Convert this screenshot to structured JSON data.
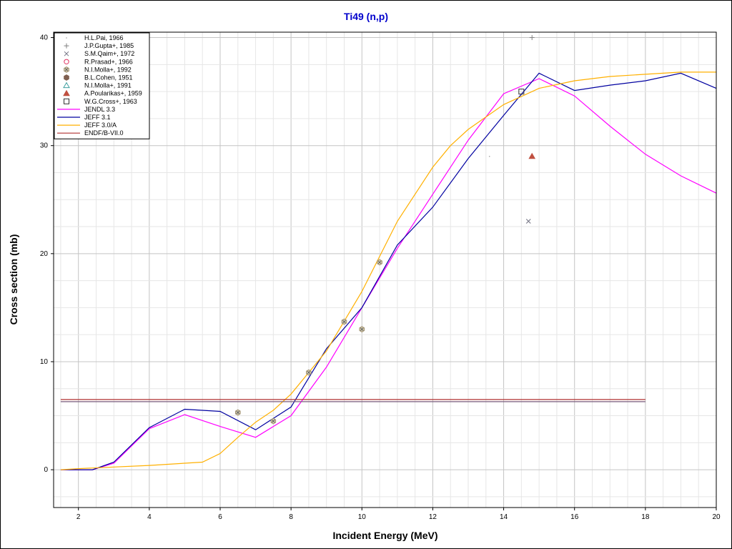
{
  "chart_data": {
    "type": "line",
    "title": "Ti49 (n,p)",
    "xlabel": "Incident Energy (MeV)",
    "ylabel": "Cross section (mb)",
    "xlim": [
      1.3,
      20
    ],
    "ylim": [
      -3.5,
      40.5
    ],
    "xticks": [
      2,
      4,
      6,
      8,
      10,
      12,
      14,
      16,
      18,
      20
    ],
    "yticks": [
      0,
      10,
      20,
      30,
      40
    ],
    "xminor_step": 0.5,
    "yminor_step": 2.5,
    "grid": true,
    "legend_position": "top-left",
    "colors": {
      "title": "#0000cc",
      "grid_major": "#c4c4c4",
      "grid_minor": "#e6e6e6"
    },
    "experimental": [
      {
        "name": "H.L.Pai, 1966",
        "marker": "dot",
        "color": "#a0a0a0",
        "points": [
          [
            13.6,
            29
          ]
        ]
      },
      {
        "name": "J.P.Gupta+, 1985",
        "marker": "plus",
        "color": "#808080",
        "points": [
          [
            14.8,
            40
          ]
        ]
      },
      {
        "name": "S.M.Qaim+, 1972",
        "marker": "x",
        "color": "#707080",
        "points": [
          [
            14.7,
            23
          ]
        ]
      },
      {
        "name": "R.Prasad+, 1966",
        "marker": "circle-open",
        "color": "#e03060",
        "points": []
      },
      {
        "name": "N.I.Molla+, 1992",
        "marker": "hex-x",
        "color": "#a09070",
        "points": [
          [
            6.5,
            5.3
          ],
          [
            7.5,
            4.5
          ],
          [
            8.5,
            9.0
          ],
          [
            9.5,
            13.7
          ],
          [
            10.0,
            13.0
          ],
          [
            10.5,
            19.2
          ]
        ]
      },
      {
        "name": "B.L.Cohen, 1951",
        "marker": "hex-filled",
        "color": "#806050",
        "points": []
      },
      {
        "name": "N.I.Molla+, 1991",
        "marker": "triangle-open",
        "color": "#40a0a0",
        "points": []
      },
      {
        "name": "A.Poularikas+, 1959",
        "marker": "triangle-filled",
        "color": "#c05040",
        "points": [
          [
            14.8,
            29
          ]
        ]
      },
      {
        "name": "W.G.Cross+, 1963",
        "marker": "square-open",
        "color": "#303030",
        "points": [
          [
            14.5,
            35
          ]
        ]
      }
    ],
    "series": [
      {
        "name": "JENDL 3.3",
        "color": "#ff00ff",
        "x": [
          1.5,
          2.4,
          3,
          4,
          5,
          6,
          7,
          8,
          9,
          10,
          11,
          12,
          13,
          14,
          15,
          16,
          17,
          18,
          19,
          20
        ],
        "y": [
          0,
          0,
          0.6,
          3.8,
          5.1,
          4,
          3,
          5,
          9.5,
          15,
          20.5,
          25.5,
          30.5,
          34.8,
          36.2,
          34.6,
          31.8,
          29.2,
          27.2,
          25.6
        ]
      },
      {
        "name": "JEFF 3.1",
        "color": "#0000a0",
        "x": [
          1.5,
          2.4,
          3,
          4,
          5,
          6,
          7,
          8,
          9,
          10,
          11,
          12,
          13,
          14,
          15,
          16,
          17,
          18,
          19,
          20
        ],
        "y": [
          0,
          0,
          0.7,
          3.9,
          5.6,
          5.4,
          3.7,
          5.8,
          11.2,
          15,
          20.8,
          24.3,
          28.8,
          32.8,
          36.7,
          35.1,
          35.6,
          36,
          36.7,
          35.3
        ]
      },
      {
        "name": "JEFF 3.0/A",
        "color": "#ffb000",
        "x": [
          1.5,
          2,
          3,
          4,
          5,
          5.5,
          6,
          6.5,
          7,
          7.5,
          8,
          9,
          10,
          11,
          12,
          12.5,
          13,
          14,
          15,
          16,
          17,
          18,
          19,
          20
        ],
        "y": [
          0,
          0.1,
          0.25,
          0.4,
          0.6,
          0.7,
          1.5,
          3,
          4.4,
          5.5,
          7,
          11,
          16.5,
          23,
          28,
          30,
          31.5,
          33.8,
          35.3,
          36,
          36.4,
          36.6,
          36.8,
          36.8
        ]
      },
      {
        "name": "ENDF/B-VII.0",
        "color": "#b03030",
        "x": [
          1.5,
          18
        ],
        "y": [
          6.5,
          6.5
        ]
      },
      {
        "name": "",
        "color": "#7a5a7a",
        "x": [
          1.5,
          18
        ],
        "y": [
          6.3,
          6.3
        ]
      }
    ]
  }
}
